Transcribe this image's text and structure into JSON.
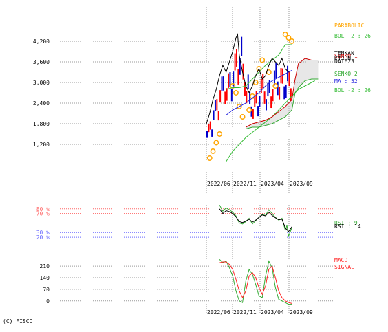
{
  "copyright": "(C) FISCO",
  "colors": {
    "price_line": "#000000",
    "candle_up": "#ff0000",
    "candle_down": "#0000cc",
    "parabolic": "#ffa500",
    "bollinger": "#33bb33",
    "ma": "#2222dd",
    "tenkan": "#cc0000",
    "kijun": "#000000",
    "senko": "#33aa33",
    "cloud": "#bbbbbb",
    "rsi": "#000000",
    "rsi_signal": "#33aa33",
    "macd": "#33aa33",
    "macd_signal": "#ff2222",
    "overbought": "#ff6666",
    "oversold": "#6666ff",
    "grid": "#999999"
  },
  "chart_data": [
    {
      "type": "line",
      "panel": "price",
      "y_ticks": [
        "4,200",
        "3,600",
        "3,000",
        "2,400",
        "1,800",
        "1,200"
      ],
      "y_tick_values": [
        4200,
        3600,
        3000,
        2400,
        1800,
        1200
      ],
      "ylim": [
        400,
        4800
      ],
      "x_ticks": [
        "2022/06",
        "2022/11",
        "2023/04",
        "2023/09"
      ],
      "xlim": [
        0,
        36
      ],
      "grid": true,
      "legend_placement": "right",
      "legend": [
        {
          "text": "PARABOLIC",
          "color": "#ffa500"
        },
        {
          "text": "BOL +2 : 26",
          "color": "#33bb33"
        },
        {
          "text": "TENKAN",
          "color": "#000000"
        },
        {
          "text": "SENKO 1",
          "color": "#cc0000"
        },
        {
          "text": "KIJUN",
          "color": "#000000"
        },
        {
          "text": "DATE23",
          "color": "#000000"
        },
        {
          "text": "SENKO 2",
          "color": "#33aa33"
        },
        {
          "text": "MA : 52",
          "color": "#2222dd"
        },
        {
          "text": "BOL -2 : 26",
          "color": "#33bb33"
        }
      ],
      "series": [
        {
          "name": "PARABOLIC",
          "x": [
            1,
            2,
            3,
            4,
            8,
            9,
            10,
            11,
            13,
            14,
            15,
            16,
            17,
            19,
            21,
            24,
            25,
            26
          ],
          "values": [
            800,
            1000,
            1250,
            1500,
            2900,
            2700,
            2300,
            2000,
            2200,
            2600,
            3000,
            3400,
            3650,
            3300,
            2900,
            4400,
            4300,
            4200
          ]
        },
        {
          "name": "MA : 52",
          "x": [
            6,
            8,
            10,
            12,
            14,
            16,
            18,
            20,
            22,
            24,
            26
          ],
          "values": [
            2050,
            2200,
            2300,
            2400,
            2550,
            2700,
            2900,
            3050,
            3150,
            3250,
            3350
          ]
        },
        {
          "name": "BOL +2 : 26",
          "x": [
            6,
            8,
            10,
            12,
            14,
            16,
            18,
            20,
            22,
            24,
            26
          ],
          "values": [
            2800,
            2850,
            2850,
            2900,
            3100,
            3300,
            3500,
            3650,
            3800,
            4100,
            4100
          ]
        },
        {
          "name": "BOL -2 : 26",
          "x": [
            6,
            8,
            10,
            12,
            14,
            16,
            18,
            20,
            22,
            24,
            26,
            28,
            30,
            33
          ],
          "values": [
            700,
            1000,
            1200,
            1400,
            1550,
            1700,
            1850,
            2000,
            2200,
            2400,
            2600,
            2800,
            2900,
            3050
          ]
        },
        {
          "name": "SENKO 1",
          "x": [
            12,
            14,
            16,
            18,
            20,
            22,
            24,
            26,
            27,
            28,
            30,
            32,
            34
          ],
          "values": [
            1700,
            1800,
            1850,
            1900,
            2000,
            2150,
            2300,
            2500,
            3100,
            3550,
            3700,
            3650,
            3650
          ]
        },
        {
          "name": "SENKO 2",
          "x": [
            12,
            14,
            16,
            18,
            20,
            22,
            24,
            26,
            27,
            28,
            30,
            32,
            34
          ],
          "values": [
            1650,
            1700,
            1700,
            1750,
            1800,
            1900,
            2000,
            2200,
            2700,
            2850,
            3050,
            3100,
            3100
          ]
        },
        {
          "name": "TENKAN",
          "x": [
            0,
            1,
            2,
            3,
            4,
            5,
            6,
            7,
            8,
            9,
            9.5,
            10,
            11,
            12,
            13,
            14,
            15,
            16,
            17,
            18,
            19,
            20,
            21,
            22,
            23,
            24,
            25
          ],
          "values": [
            1800,
            2100,
            2500,
            2800,
            3200,
            3500,
            3300,
            3600,
            3900,
            4300,
            4400,
            3800,
            3300,
            2900,
            2700,
            2900,
            3200,
            3400,
            3100,
            3200,
            3500,
            3700,
            3600,
            3500,
            3700,
            3400,
            3300
          ]
        }
      ]
    },
    {
      "type": "line",
      "panel": "rsi",
      "y_ticks": [
        "80 %",
        "70 %",
        "30 %",
        "20 %"
      ],
      "y_tick_values": [
        80,
        70,
        30,
        20
      ],
      "ylim": [
        10,
        100
      ],
      "x_ticks": [],
      "legend": [
        {
          "text": "RSI : 9",
          "color": "#33aa33"
        },
        {
          "text": "RSI : 14",
          "color": "#000000"
        }
      ],
      "series": [
        {
          "name": "RSI : 9",
          "x": [
            4,
            5,
            6,
            7,
            8,
            9,
            10,
            11,
            12,
            13,
            14,
            15,
            16,
            17,
            18,
            19,
            20,
            21,
            22,
            23,
            24,
            24.5,
            25,
            26
          ],
          "values": [
            88,
            75,
            82,
            78,
            73,
            65,
            50,
            48,
            53,
            60,
            48,
            55,
            62,
            68,
            66,
            78,
            70,
            62,
            56,
            60,
            35,
            45,
            22,
            40
          ]
        },
        {
          "name": "RSI : 14",
          "x": [
            4,
            5,
            6,
            7,
            8,
            9,
            10,
            11,
            12,
            13,
            14,
            15,
            16,
            17,
            18,
            19,
            20,
            21,
            22,
            23,
            24,
            25,
            26
          ],
          "values": [
            80,
            70,
            76,
            74,
            70,
            63,
            53,
            51,
            54,
            58,
            52,
            56,
            62,
            67,
            65,
            73,
            66,
            61,
            57,
            58,
            40,
            32,
            42
          ]
        }
      ]
    },
    {
      "type": "line",
      "panel": "macd",
      "y_ticks": [
        "210",
        "140",
        "70",
        "0"
      ],
      "y_tick_values": [
        210,
        140,
        70,
        0
      ],
      "ylim": [
        -30,
        260
      ],
      "x_ticks": [
        "2022/06",
        "2022/11",
        "2023/04",
        "2023/09"
      ],
      "legend": [
        {
          "text": "MACD",
          "color": "#ff2222"
        },
        {
          "text": "SIGNAL",
          "color": "#ff2222"
        }
      ],
      "series": [
        {
          "name": "MACD",
          "x": [
            4,
            5,
            6,
            7,
            8,
            9,
            10,
            11,
            12,
            13,
            14,
            15,
            16,
            17,
            18,
            19,
            20,
            21,
            22,
            23,
            24,
            25,
            26
          ],
          "values": [
            250,
            230,
            240,
            200,
            150,
            60,
            0,
            -10,
            120,
            190,
            160,
            100,
            30,
            20,
            150,
            240,
            200,
            80,
            10,
            0,
            -10,
            -20,
            -20
          ]
        },
        {
          "name": "SIGNAL",
          "x": [
            4,
            5,
            6,
            7,
            8,
            9,
            10,
            11,
            12,
            13,
            14,
            15,
            16,
            17,
            18,
            19,
            20,
            21,
            22,
            23,
            24,
            25,
            26
          ],
          "values": [
            230,
            235,
            235,
            220,
            190,
            130,
            60,
            20,
            60,
            150,
            170,
            140,
            80,
            40,
            90,
            190,
            210,
            140,
            60,
            20,
            0,
            -10,
            -15
          ]
        }
      ]
    }
  ]
}
